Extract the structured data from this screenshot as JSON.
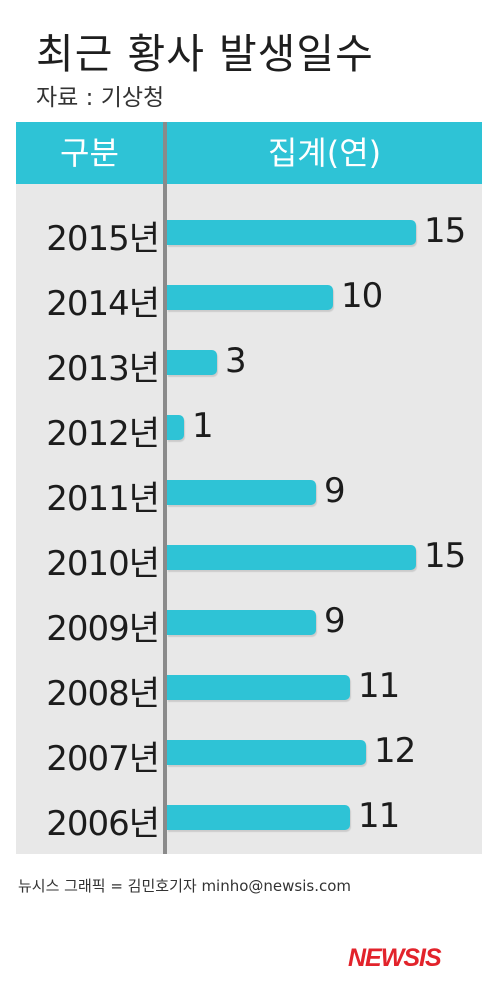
{
  "header": {
    "title": "최근 황사 발생일수",
    "source": "자료 : 기상청"
  },
  "table_header": {
    "category_label": "구분",
    "value_label": "집계(연)"
  },
  "footer": {
    "credit": "뉴시스 그래픽 = 김민호기자 minho@newsis.com",
    "logo": "NEWSIS"
  },
  "colors": {
    "bar": "#2ec3d6",
    "panel": "#e8e8e8",
    "logo": "#e2232b"
  },
  "chart_data": {
    "type": "bar",
    "orientation": "horizontal",
    "title": "최근 황사 발생일수",
    "categories": [
      "2015년",
      "2014년",
      "2013년",
      "2012년",
      "2011년",
      "2010년",
      "2009년",
      "2008년",
      "2007년",
      "2006년"
    ],
    "values": [
      15,
      10,
      3,
      1,
      9,
      15,
      9,
      11,
      12,
      11
    ],
    "xlim": [
      0,
      15
    ],
    "grid": false,
    "legend": "none"
  }
}
